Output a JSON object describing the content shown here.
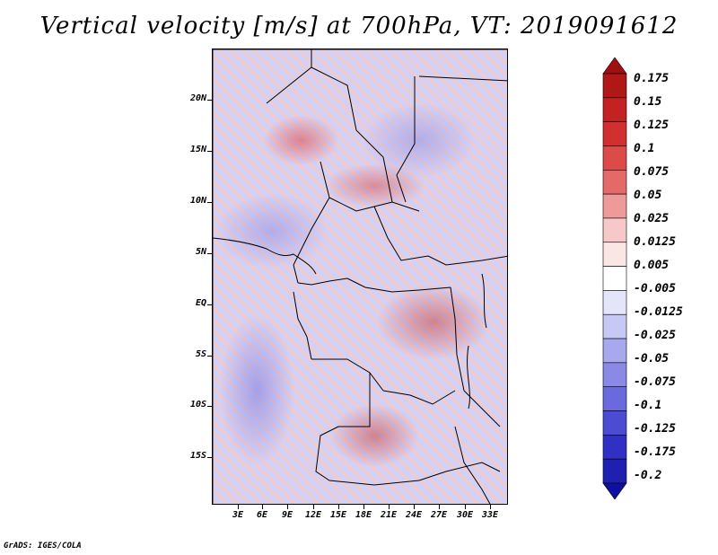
{
  "title": "Vertical velocity [m/s] at 700hPa, VT: 2019091612",
  "latitude_labels": [
    "20N",
    "15N",
    "10N",
    "5N",
    "EQ",
    "5S",
    "10S",
    "15S"
  ],
  "longitude_labels": [
    "3E",
    "6E",
    "9E",
    "12E",
    "15E",
    "18E",
    "21E",
    "24E",
    "27E",
    "30E",
    "33E"
  ],
  "colorbar": {
    "levels": [
      "0.175",
      "0.15",
      "0.125",
      "0.1",
      "0.075",
      "0.05",
      "0.025",
      "0.0125",
      "0.005",
      "-0.005",
      "-0.0125",
      "-0.025",
      "-0.05",
      "-0.075",
      "-0.1",
      "-0.125",
      "-0.175",
      "-0.2"
    ],
    "colors": [
      "#a01010",
      "#b01818",
      "#c22222",
      "#d03030",
      "#dc4a4a",
      "#e46a6a",
      "#ee9a9a",
      "#f6c8c8",
      "#fbe6e6",
      "#ffffff",
      "#e4e4fa",
      "#c8c8f4",
      "#a8a8ee",
      "#8a8ae6",
      "#6a6add",
      "#4c4cd2",
      "#3030c4",
      "#2020b0",
      "#1010a0"
    ]
  },
  "credit": "GrADS: IGES/COLA"
}
